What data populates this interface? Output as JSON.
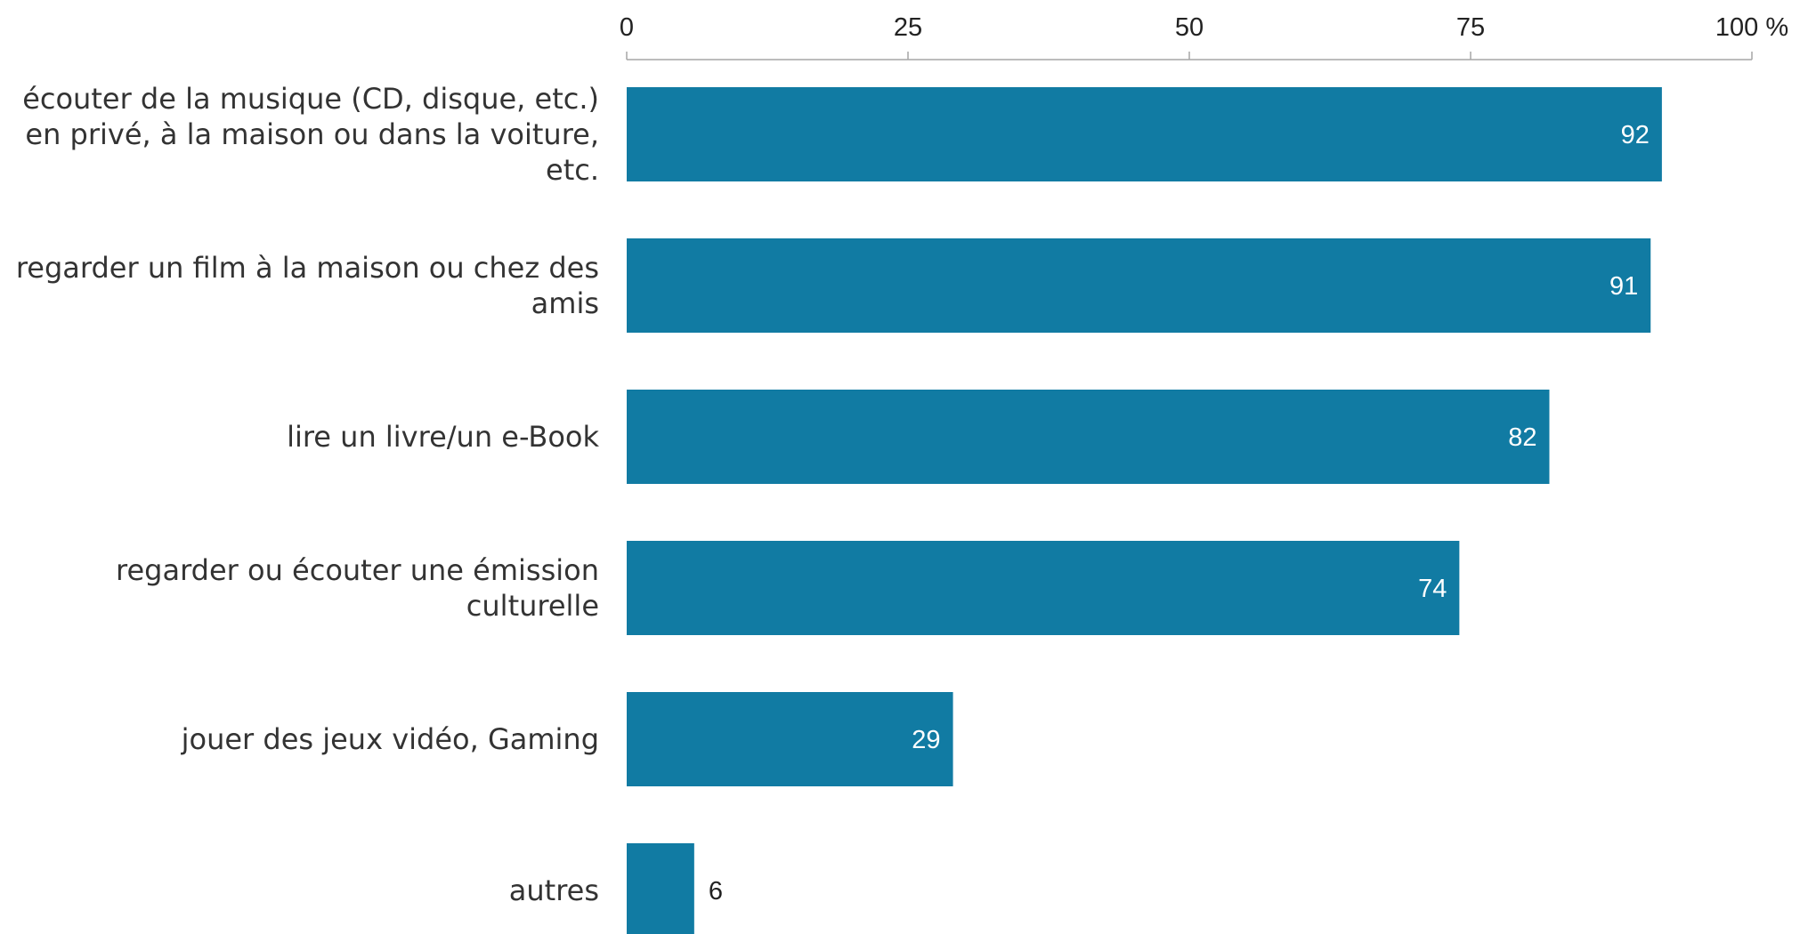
{
  "chart_data": {
    "type": "bar",
    "orientation": "horizontal",
    "categories": [
      [
        "écouter de la musique (CD, disque, etc.)",
        "en privé, à la maison ou dans la voiture,",
        "etc."
      ],
      [
        "regarder un film à la maison ou chez des",
        "amis"
      ],
      [
        "lire un livre/un e-Book"
      ],
      [
        "regarder ou écouter une émission",
        "culturelle"
      ],
      [
        "jouer des jeux vidéo, Gaming"
      ],
      [
        "autres"
      ]
    ],
    "values": [
      92,
      91,
      82,
      74,
      29,
      6
    ],
    "value_labels": [
      "92",
      "91",
      "82",
      "74",
      "29",
      "6"
    ],
    "xlim": [
      0,
      100
    ],
    "xticks": [
      0,
      25,
      50,
      75,
      100
    ],
    "xtick_labels": [
      "0",
      "25",
      "50",
      "75",
      "100 %"
    ],
    "axis_position": "top",
    "grid": false,
    "legend": "none",
    "title": "",
    "xlabel": "",
    "ylabel": "",
    "colors": {
      "bar": "#117ba3",
      "axis": "#a6a6a6",
      "value_label_inside": "#ffffff",
      "value_label_outside": "#222222"
    }
  }
}
